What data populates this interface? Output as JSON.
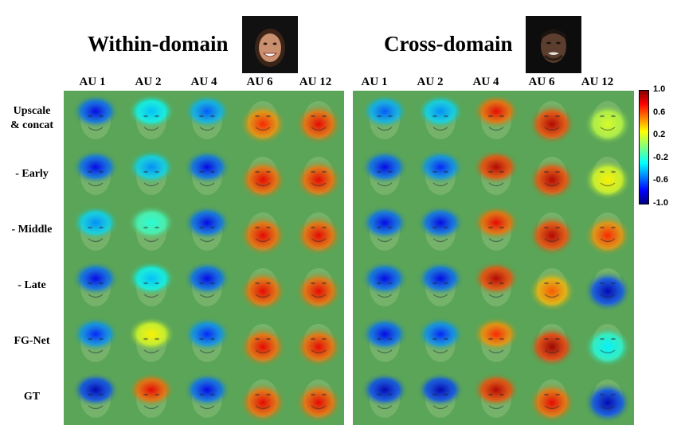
{
  "figure": {
    "within_title": "Within-domain",
    "cross_title": "Cross-domain",
    "within_columns": [
      "AU 1",
      "AU 2",
      "AU 4",
      "AU 6",
      "AU 12"
    ],
    "cross_columns": [
      "AU 1",
      "AU 2",
      "AU 4",
      "AU 6",
      "AU 12"
    ],
    "rows": [
      {
        "label_line1": "Upscale",
        "label_line2": "& concat",
        "within": [
          -0.8,
          -0.4,
          -0.6,
          0.7,
          0.8
        ],
        "cross": [
          -0.6,
          -0.5,
          0.8,
          0.9,
          0.2
        ]
      },
      {
        "label_line1": "- Early",
        "label_line2": "",
        "within": [
          -0.8,
          -0.5,
          -0.8,
          0.8,
          0.8
        ],
        "cross": [
          -0.8,
          -0.7,
          0.9,
          0.9,
          0.3
        ]
      },
      {
        "label_line1": "- Middle",
        "label_line2": "",
        "within": [
          -0.5,
          -0.2,
          -0.8,
          0.8,
          0.8
        ],
        "cross": [
          -0.8,
          -0.8,
          0.8,
          0.9,
          0.7
        ]
      },
      {
        "label_line1": "- Late",
        "label_line2": "",
        "within": [
          -0.8,
          -0.4,
          -0.8,
          0.8,
          0.8
        ],
        "cross": [
          -0.8,
          -0.8,
          0.9,
          0.6,
          -0.9
        ]
      },
      {
        "label_line1": "FG-Net",
        "label_line2": "",
        "within": [
          -0.7,
          0.3,
          -0.7,
          0.8,
          0.8
        ],
        "cross": [
          -0.8,
          -0.7,
          0.7,
          0.95,
          -0.3
        ]
      },
      {
        "label_line1": "GT",
        "label_line2": "",
        "within": [
          -0.9,
          0.8,
          -0.8,
          0.8,
          0.8
        ],
        "cross": [
          -0.9,
          -0.9,
          0.9,
          0.8,
          -0.9
        ]
      }
    ],
    "colorbar_ticks": [
      "1.0",
      "0.6",
      "0.2",
      "-0.2",
      "-0.6",
      "-1.0"
    ],
    "colorbar_range": [
      -1.0,
      1.0
    ]
  }
}
